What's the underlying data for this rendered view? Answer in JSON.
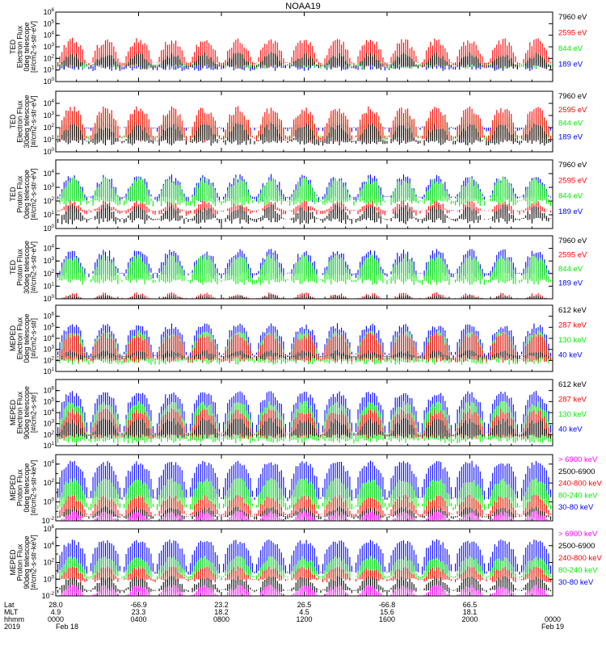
{
  "title": "NOAA19",
  "colors": {
    "black": "#000000",
    "red": "#ff0000",
    "green": "#00ee00",
    "blue": "#0000ff",
    "magenta": "#ff00ff"
  },
  "chart_data": [
    {
      "type": "line",
      "ylabel": [
        "TED",
        "Electron Flux",
        "0deg telescope",
        "[#/cm2-s-str-eV]"
      ],
      "scale": "log",
      "ylim": [
        1,
        1000000
      ],
      "yticks": [
        {
          "base": "10",
          "exp": "0"
        },
        {
          "base": "10",
          "exp": "1"
        },
        {
          "base": "10",
          "exp": "2"
        },
        {
          "base": "10",
          "exp": "3"
        },
        {
          "base": "10",
          "exp": "4"
        },
        {
          "base": "10",
          "exp": "5"
        },
        {
          "base": "10",
          "exp": "6"
        }
      ],
      "series": [
        {
          "name": "7960 eV",
          "color": "black",
          "level": 25,
          "spike": 300
        },
        {
          "name": "2595 eV",
          "color": "red",
          "level": 40,
          "spike": 5000
        },
        {
          "name": "844 eV",
          "color": "green",
          "level": 30,
          "spike": 400
        },
        {
          "name": "189 eV",
          "color": "blue",
          "level": 20,
          "spike": 200
        }
      ]
    },
    {
      "type": "line",
      "ylabel": [
        "TED",
        "Electron Flux",
        "30deg telescope",
        "[#/cm2-s-str-eV]"
      ],
      "scale": "log",
      "ylim": [
        1,
        100000
      ],
      "yticks": [
        {
          "base": "10",
          "exp": "0"
        },
        {
          "base": "10",
          "exp": "1"
        },
        {
          "base": "10",
          "exp": "2"
        },
        {
          "base": "10",
          "exp": "3"
        },
        {
          "base": "10",
          "exp": "4"
        }
      ],
      "series": [
        {
          "name": "7960 eV",
          "color": "black",
          "level": 8,
          "spike": 200
        },
        {
          "name": "2595 eV",
          "color": "red",
          "level": 15,
          "spike": 5000
        },
        {
          "name": "844 eV",
          "color": "green",
          "level": 20,
          "spike": 2000
        },
        {
          "name": "189 eV",
          "color": "blue",
          "level": 100,
          "spike": 300
        }
      ]
    },
    {
      "type": "line",
      "ylabel": [
        "TED",
        "Proton Flux",
        "0deg telescope",
        "[#/cm2-s-str-eV]"
      ],
      "scale": "log",
      "ylim": [
        1,
        100000
      ],
      "yticks": [
        {
          "base": "10",
          "exp": "0"
        },
        {
          "base": "10",
          "exp": "1"
        },
        {
          "base": "10",
          "exp": "2"
        },
        {
          "base": "10",
          "exp": "3"
        },
        {
          "base": "10",
          "exp": "4"
        }
      ],
      "series": [
        {
          "name": "7960 eV",
          "color": "black",
          "level": 5,
          "spike": 50
        },
        {
          "name": "2595 eV",
          "color": "red",
          "level": 20,
          "spike": 100
        },
        {
          "name": "844 eV",
          "color": "green",
          "level": 100,
          "spike": 5000
        },
        {
          "name": "189 eV",
          "color": "blue",
          "level": 200,
          "spike": 8000
        }
      ]
    },
    {
      "type": "line",
      "ylabel": [
        "TED",
        "Proton Flux",
        "30deg telescope",
        "[#/cm2-s-str-eV]"
      ],
      "scale": "log",
      "ylim": [
        1,
        100000
      ],
      "yticks": [
        {
          "base": "10",
          "exp": "0"
        },
        {
          "base": "10",
          "exp": "1"
        },
        {
          "base": "10",
          "exp": "2"
        },
        {
          "base": "10",
          "exp": "3"
        },
        {
          "base": "10",
          "exp": "4"
        }
      ],
      "series": [
        {
          "name": "7960 eV",
          "color": "black",
          "level": 1,
          "spike": 2
        },
        {
          "name": "2595 eV",
          "color": "red",
          "level": 1,
          "spike": 3
        },
        {
          "name": "844 eV",
          "color": "green",
          "level": 30,
          "spike": 3000
        },
        {
          "name": "189 eV",
          "color": "blue",
          "level": 100,
          "spike": 8000
        }
      ]
    },
    {
      "type": "line",
      "ylabel": [
        "MEPED",
        "Electron Flux",
        "0deg telescope",
        "[#/cm2-s-str]"
      ],
      "scale": "log",
      "ylim": [
        10,
        10000000
      ],
      "yticks": [
        {
          "base": "10",
          "exp": "1"
        },
        {
          "base": "10",
          "exp": "2"
        },
        {
          "base": "10",
          "exp": "3"
        },
        {
          "base": "10",
          "exp": "4"
        },
        {
          "base": "10",
          "exp": "5"
        },
        {
          "base": "10",
          "exp": "6"
        }
      ],
      "series": [
        {
          "name": "612 keV",
          "color": "black",
          "level": 250,
          "spike": 800
        },
        {
          "name": "287 keV",
          "color": "red",
          "level": 150,
          "spike": 30000
        },
        {
          "name": "130 keV",
          "color": "green",
          "level": 100,
          "spike": 50000
        },
        {
          "name": "40 keV",
          "color": "blue",
          "level": 300,
          "spike": 200000
        }
      ]
    },
    {
      "type": "line",
      "ylabel": [
        "MEPED",
        "Electron Flux",
        "90deg telescope",
        "[#/cm2-s-str]"
      ],
      "scale": "log",
      "ylim": [
        10,
        10000000
      ],
      "yticks": [
        {
          "base": "10",
          "exp": "1"
        },
        {
          "base": "10",
          "exp": "2"
        },
        {
          "base": "10",
          "exp": "3"
        },
        {
          "base": "10",
          "exp": "4"
        },
        {
          "base": "10",
          "exp": "5"
        },
        {
          "base": "10",
          "exp": "6"
        }
      ],
      "series": [
        {
          "name": "612 keV",
          "color": "black",
          "level": 100,
          "spike": 3000
        },
        {
          "name": "287 keV",
          "color": "red",
          "level": 100,
          "spike": 20000
        },
        {
          "name": "130 keV",
          "color": "green",
          "level": 40,
          "spike": 100000
        },
        {
          "name": "40 keV",
          "color": "blue",
          "level": 150,
          "spike": 800000
        }
      ]
    },
    {
      "type": "line",
      "ylabel": [
        "MEPED",
        "Proton Flux",
        "0deg telescope",
        "[#/cm2-s-str-keV]"
      ],
      "scale": "log",
      "ylim": [
        0.01,
        100000
      ],
      "yticks": [
        {
          "base": "10",
          "exp": "-2"
        },
        {
          "base": "10",
          "exp": "0"
        },
        {
          "base": "10",
          "exp": "2"
        },
        {
          "base": "10",
          "exp": "4"
        }
      ],
      "series": [
        {
          "name": "> 6900 keV",
          "color": "magenta",
          "level": 0.01,
          "spike": 0.1
        },
        {
          "name": "2500-6900",
          "color": "black",
          "level": 0.03,
          "spike": 0.3
        },
        {
          "name": "240-800 keV",
          "color": "red",
          "level": 0.05,
          "spike": 5
        },
        {
          "name": "80-240 keV",
          "color": "green",
          "level": 0.3,
          "spike": 300
        },
        {
          "name": "30-80 keV",
          "color": "blue",
          "level": 3,
          "spike": 20000
        }
      ]
    },
    {
      "type": "line",
      "ylabel": [
        "MEPED",
        "Proton Flux",
        "90deg telescope",
        "[#/cm2-s-str-keV]"
      ],
      "scale": "log",
      "ylim": [
        0.01,
        1000000
      ],
      "yticks": [
        {
          "base": "10",
          "exp": "-2"
        },
        {
          "base": "10",
          "exp": "0"
        },
        {
          "base": "10",
          "exp": "2"
        },
        {
          "base": "10",
          "exp": "4"
        },
        {
          "base": "10",
          "exp": "6"
        }
      ],
      "series": [
        {
          "name": "> 6900 keV",
          "color": "magenta",
          "level": 0.01,
          "spike": 0.2
        },
        {
          "name": "2500-6900",
          "color": "black",
          "level": 0.05,
          "spike": 2
        },
        {
          "name": "240-800 keV",
          "color": "red",
          "level": 1,
          "spike": 30
        },
        {
          "name": "80-240 keV",
          "color": "green",
          "level": 2,
          "spike": 500
        },
        {
          "name": "30-80 keV",
          "color": "blue",
          "level": 8,
          "spike": 50000
        }
      ]
    }
  ],
  "xaxis": {
    "row_labels": [
      "Lat",
      "MLT",
      "hhmm",
      "2019"
    ],
    "ticks": [
      {
        "hours": 0,
        "lat": "28.0",
        "mlt": "4.9",
        "hhmm": "0000",
        "date": "Feb 18"
      },
      {
        "hours": 4,
        "lat": "-66.9",
        "mlt": "23.3",
        "hhmm": "0400",
        "date": ""
      },
      {
        "hours": 8,
        "lat": "23.2",
        "mlt": "18.2",
        "hhmm": "0800",
        "date": ""
      },
      {
        "hours": 12,
        "lat": "26.5",
        "mlt": "4.5",
        "hhmm": "1200",
        "date": ""
      },
      {
        "hours": 16,
        "lat": "-66.8",
        "mlt": "15.6",
        "hhmm": "1600",
        "date": ""
      },
      {
        "hours": 20,
        "lat": "66.5",
        "mlt": "18.1",
        "hhmm": "2000",
        "date": ""
      },
      {
        "hours": 24,
        "lat": "",
        "mlt": "",
        "hhmm": "0000",
        "date": "Feb 19"
      }
    ],
    "range_hours": [
      0,
      24
    ]
  }
}
